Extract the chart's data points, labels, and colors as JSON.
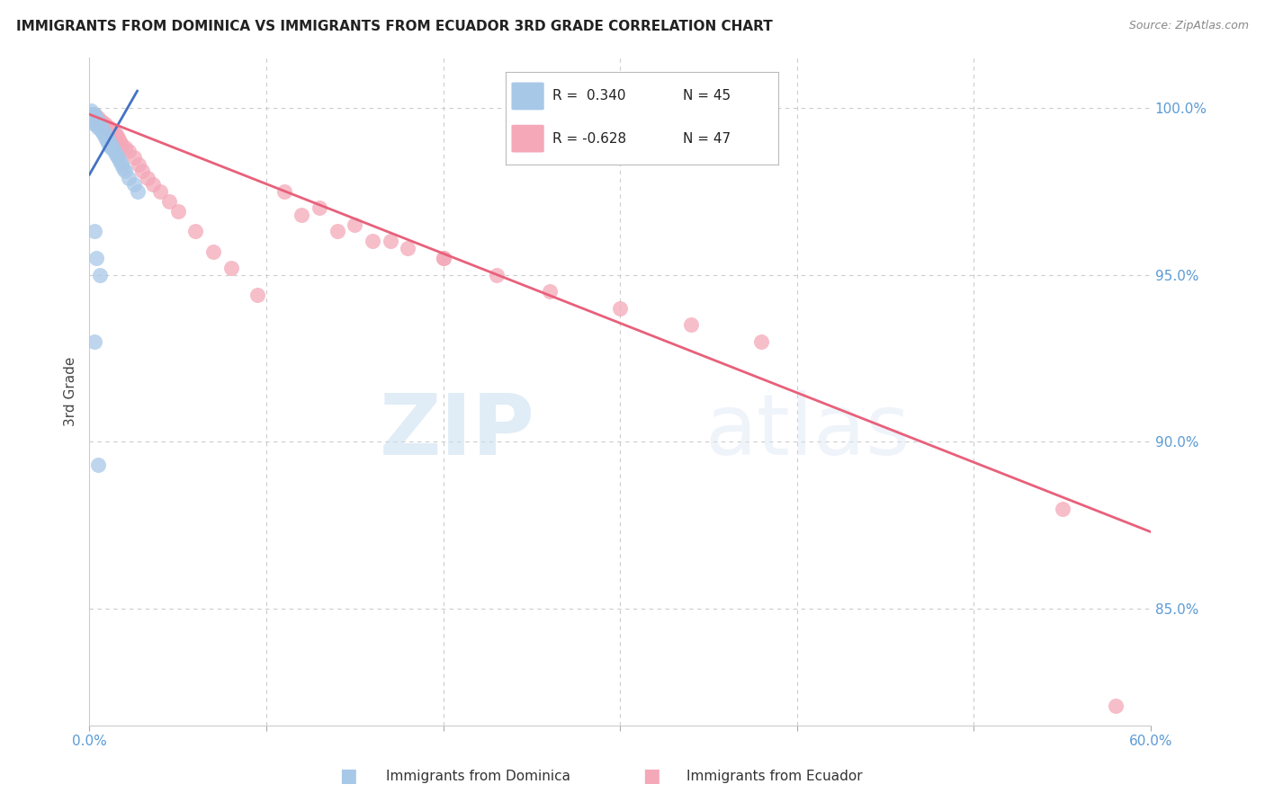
{
  "title": "IMMIGRANTS FROM DOMINICA VS IMMIGRANTS FROM ECUADOR 3RD GRADE CORRELATION CHART",
  "source": "Source: ZipAtlas.com",
  "ylabel": "3rd Grade",
  "ytick_labels": [
    "100.0%",
    "95.0%",
    "90.0%",
    "85.0%"
  ],
  "ytick_values": [
    1.0,
    0.95,
    0.9,
    0.85
  ],
  "xlim": [
    0.0,
    0.6
  ],
  "ylim": [
    0.815,
    1.015
  ],
  "legend_r1": "R =  0.340",
  "legend_n1": "N = 45",
  "legend_r2": "R = -0.628",
  "legend_n2": "N = 47",
  "dominica_color": "#a8c8e8",
  "ecuador_color": "#f4a8b8",
  "dominica_line_color": "#4472c4",
  "ecuador_line_color": "#e8607a",
  "background_color": "#ffffff",
  "grid_color": "#cccccc",
  "axis_label_color": "#5b9bd5",
  "title_fontsize": 11,
  "watermark_zip": "ZIP",
  "watermark_atlas": "atlas",
  "dominica_x": [
    0.001,
    0.001,
    0.002,
    0.002,
    0.002,
    0.003,
    0.003,
    0.003,
    0.003,
    0.004,
    0.004,
    0.004,
    0.005,
    0.005,
    0.005,
    0.006,
    0.006,
    0.007,
    0.007,
    0.008,
    0.008,
    0.009,
    0.009,
    0.01,
    0.01,
    0.011,
    0.011,
    0.012,
    0.012,
    0.013,
    0.014,
    0.015,
    0.016,
    0.017,
    0.018,
    0.019,
    0.02,
    0.022,
    0.025,
    0.027,
    0.003,
    0.004,
    0.006,
    0.003,
    0.005
  ],
  "dominica_y": [
    0.999,
    0.998,
    0.998,
    0.997,
    0.996,
    0.998,
    0.997,
    0.996,
    0.995,
    0.997,
    0.996,
    0.995,
    0.996,
    0.995,
    0.994,
    0.995,
    0.994,
    0.994,
    0.993,
    0.993,
    0.992,
    0.992,
    0.991,
    0.991,
    0.99,
    0.99,
    0.989,
    0.989,
    0.988,
    0.988,
    0.987,
    0.986,
    0.985,
    0.984,
    0.983,
    0.982,
    0.981,
    0.979,
    0.977,
    0.975,
    0.963,
    0.955,
    0.95,
    0.93,
    0.893
  ],
  "ecuador_x": [
    0.003,
    0.004,
    0.005,
    0.006,
    0.007,
    0.008,
    0.009,
    0.01,
    0.011,
    0.012,
    0.013,
    0.014,
    0.015,
    0.016,
    0.017,
    0.018,
    0.02,
    0.022,
    0.025,
    0.028,
    0.03,
    0.033,
    0.036,
    0.04,
    0.045,
    0.05,
    0.06,
    0.07,
    0.08,
    0.095,
    0.11,
    0.13,
    0.15,
    0.17,
    0.2,
    0.23,
    0.26,
    0.3,
    0.34,
    0.38,
    0.12,
    0.14,
    0.16,
    0.18,
    0.2,
    0.55,
    0.58
  ],
  "ecuador_y": [
    0.998,
    0.997,
    0.997,
    0.996,
    0.996,
    0.995,
    0.995,
    0.994,
    0.994,
    0.993,
    0.993,
    0.992,
    0.992,
    0.991,
    0.99,
    0.989,
    0.988,
    0.987,
    0.985,
    0.983,
    0.981,
    0.979,
    0.977,
    0.975,
    0.972,
    0.969,
    0.963,
    0.957,
    0.952,
    0.944,
    0.975,
    0.97,
    0.965,
    0.96,
    0.955,
    0.95,
    0.945,
    0.94,
    0.935,
    0.93,
    0.968,
    0.963,
    0.96,
    0.958,
    0.955,
    0.88,
    0.821
  ],
  "dominica_line_x": [
    0.0,
    0.027
  ],
  "dominica_line_y": [
    0.98,
    1.005
  ],
  "ecuador_line_x": [
    0.0,
    0.6
  ],
  "ecuador_line_y": [
    0.998,
    0.873
  ]
}
